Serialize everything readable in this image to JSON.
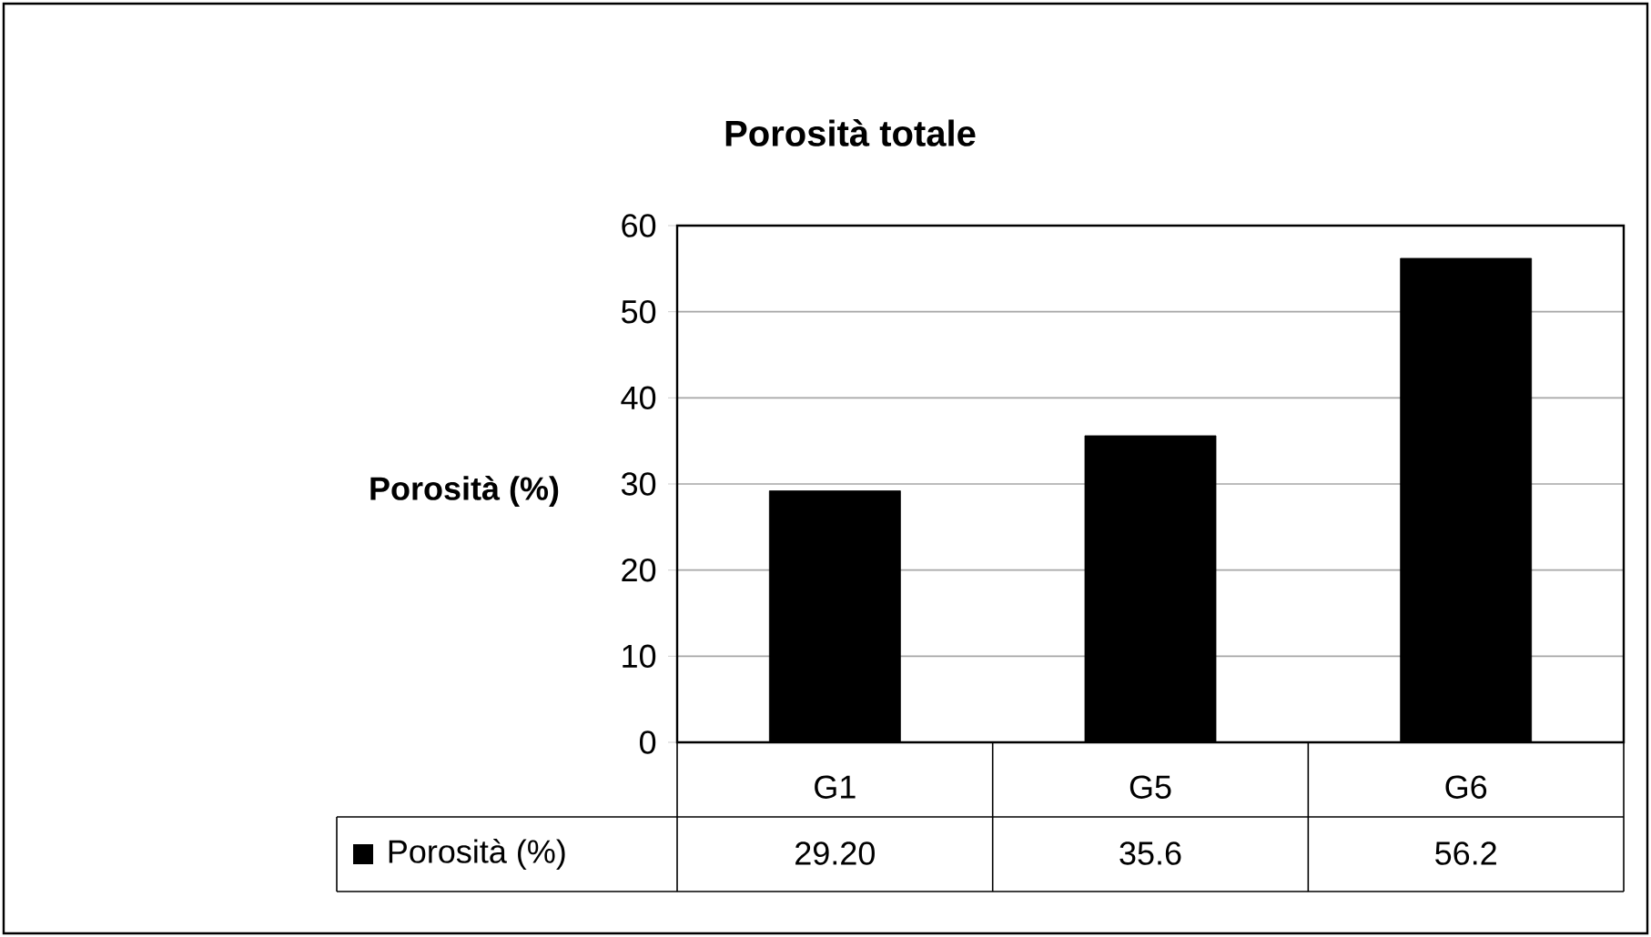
{
  "chart_data": {
    "type": "bar",
    "title": "Porosità totale",
    "ylabel": "Porosità (%)",
    "categories": [
      "G1",
      "G5",
      "G6"
    ],
    "series": [
      {
        "name": "Porosità (%)",
        "color": "#000000",
        "values": [
          29.2,
          35.6,
          56.2
        ],
        "value_labels": [
          "29.20",
          "35.6",
          "56.2"
        ]
      }
    ],
    "ylim": [
      0,
      60
    ],
    "yticks": [
      0,
      10,
      20,
      30,
      40,
      50,
      60
    ],
    "grid": "y"
  }
}
